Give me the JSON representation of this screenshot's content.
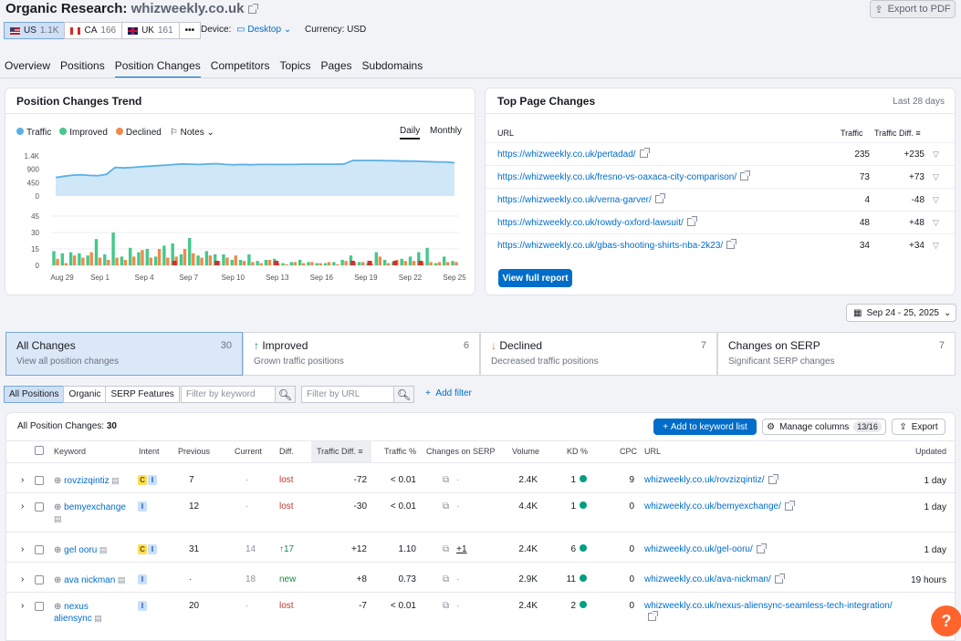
{
  "header": {
    "title_prefix": "Organic Research:",
    "domain": "whizweekly.co.uk",
    "export_pdf": "Export to PDF"
  },
  "databases": [
    {
      "code": "US",
      "count": "1.1K",
      "selected": true
    },
    {
      "code": "CA",
      "count": "166",
      "selected": false
    },
    {
      "code": "UK",
      "count": "161",
      "selected": false
    }
  ],
  "more_label": "•••",
  "device": {
    "label": "Device:",
    "value": "Desktop"
  },
  "currency": {
    "label": "Currency:",
    "value": "USD"
  },
  "nav_tabs": [
    "Overview",
    "Positions",
    "Position Changes",
    "Competitors",
    "Topics",
    "Pages",
    "Subdomains"
  ],
  "active_tab": "Position Changes",
  "trend": {
    "title": "Position Changes Trend",
    "legend": {
      "traffic": "Traffic",
      "improved": "Improved",
      "declined": "Declined",
      "notes": "Notes"
    },
    "period_daily": "Daily",
    "period_monthly": "Monthly",
    "traffic_ticks": [
      "1.4K",
      "900",
      "450",
      "0"
    ],
    "changes_ticks": [
      "45",
      "30",
      "15",
      "0"
    ],
    "x_labels": [
      "Aug 29",
      "Sep 1",
      "Sep 4",
      "Sep 7",
      "Sep 10",
      "Sep 13",
      "Sep 16",
      "Sep 19",
      "Sep 22",
      "Sep 25"
    ]
  },
  "chart_data": {
    "type": "line",
    "traffic": [
      650,
      690,
      730,
      740,
      720,
      710,
      760,
      1000,
      980,
      1000,
      1020,
      1040,
      1060,
      1080,
      1100,
      1120,
      1110,
      1100,
      1120,
      1130,
      1100,
      1090,
      1100,
      1090,
      1100,
      1100,
      1100,
      1100,
      1100,
      1110,
      1110,
      1110,
      1110,
      1110,
      1120,
      1240,
      1240,
      1240,
      1240,
      1230,
      1230,
      1220,
      1220,
      1210,
      1200,
      1190,
      1190,
      1160
    ],
    "improved": [
      13,
      11,
      12,
      11,
      9,
      24,
      10,
      30,
      8,
      16,
      12,
      15,
      8,
      18,
      20,
      10,
      25,
      9,
      13,
      10,
      10,
      5,
      5,
      10,
      4,
      5,
      6,
      2,
      3,
      5,
      3,
      2,
      2,
      3,
      5,
      9,
      3,
      2,
      12,
      5,
      3,
      6,
      8,
      12,
      16,
      2,
      8,
      4
    ],
    "declined": [
      6,
      2,
      9,
      7,
      12,
      7,
      5,
      7,
      5,
      8,
      14,
      7,
      15,
      7,
      8,
      15,
      11,
      7,
      9,
      4,
      7,
      9,
      4,
      3,
      2,
      5,
      2,
      1,
      3,
      2,
      3,
      2,
      3,
      1,
      4,
      3,
      3,
      2,
      8,
      2,
      5,
      4,
      4,
      3,
      3,
      3,
      3,
      3
    ],
    "notes_days": [
      14,
      19,
      26,
      35,
      37,
      40,
      43
    ]
  },
  "top_pages": {
    "title": "Top Page Changes",
    "period": "Last 28 days",
    "col_url": "URL",
    "col_traffic": "Traffic",
    "col_diff": "Traffic Diff.",
    "rows": [
      {
        "url": "https://whizweekly.co.uk/pertadad/",
        "traffic": "235",
        "diff": "+235"
      },
      {
        "url": "https://whizweekly.co.uk/fresno-vs-oaxaca-city-comparison/",
        "traffic": "73",
        "diff": "+73"
      },
      {
        "url": "https://whizweekly.co.uk/verna-garver/",
        "traffic": "4",
        "diff": "-48"
      },
      {
        "url": "https://whizweekly.co.uk/rowdy-oxford-lawsuit/",
        "traffic": "48",
        "diff": "+48"
      },
      {
        "url": "https://whizweekly.co.uk/gbas-shooting-shirts-nba-2k23/",
        "traffic": "34",
        "diff": "+34"
      }
    ],
    "view_full": "View full report"
  },
  "date_range": "Sep 24 - 25, 2025",
  "filter_tabs": [
    {
      "title": "All Changes",
      "count": "30",
      "sub": "View all position changes",
      "active": true,
      "icon": ""
    },
    {
      "title": "Improved",
      "count": "6",
      "sub": "Grown traffic positions",
      "active": false,
      "icon": "↑"
    },
    {
      "title": "Declined",
      "count": "7",
      "sub": "Decreased traffic positions",
      "active": false,
      "icon": "↓"
    },
    {
      "title": "Changes on SERP",
      "count": "7",
      "sub": "Significant SERP changes",
      "active": false,
      "icon": ""
    }
  ],
  "chips": [
    "All Positions",
    "Organic",
    "SERP Features"
  ],
  "filters": {
    "keyword_placeholder": "Filter by keyword",
    "url_placeholder": "Filter by URL",
    "add_filter": "Add filter"
  },
  "table": {
    "summary_label": "All Position Changes:",
    "summary_count": "30",
    "add_to_list": "Add to keyword list",
    "manage_columns": "Manage columns",
    "columns_count": "13/16",
    "export": "Export",
    "headers": [
      "Keyword",
      "Intent",
      "Previous",
      "Current",
      "Diff.",
      "Traffic Diff.",
      "Traffic %",
      "Changes on SERP",
      "Volume",
      "KD %",
      "CPC",
      "URL",
      "Updated"
    ],
    "rows": [
      {
        "keyword": "rovzizqintiz",
        "intents": [
          "C",
          "I"
        ],
        "previous": "7",
        "current": "·",
        "diff": "lost",
        "traffic_diff": "-72",
        "traffic_pct": "< 0.01",
        "serp_changes": "·",
        "volume": "2.4K",
        "kd": "1",
        "cpc": "9",
        "url": "whizweekly.co.uk/rovzizqintiz/",
        "updated": "1 day"
      },
      {
        "keyword": "bemyexchange",
        "intents": [
          "I"
        ],
        "previous": "12",
        "current": "·",
        "diff": "lost",
        "traffic_diff": "-30",
        "traffic_pct": "< 0.01",
        "serp_changes": "·",
        "volume": "4.4K",
        "kd": "1",
        "cpc": "0",
        "url": "whizweekly.co.uk/bemyexchange/",
        "updated": "1 day"
      },
      {
        "keyword": "gel ooru",
        "intents": [
          "C",
          "I"
        ],
        "previous": "31",
        "current": "14",
        "diff": "↑17",
        "traffic_diff": "+12",
        "traffic_pct": "1.10",
        "serp_changes": "+1",
        "volume": "2.4K",
        "kd": "6",
        "cpc": "0",
        "url": "whizweekly.co.uk/gel-ooru/",
        "updated": "1 day"
      },
      {
        "keyword": "ava nickman",
        "intents": [
          "I"
        ],
        "previous": "·",
        "current": "18",
        "diff": "new",
        "traffic_diff": "+8",
        "traffic_pct": "0.73",
        "serp_changes": "·",
        "volume": "2.9K",
        "kd": "11",
        "cpc": "0",
        "url": "whizweekly.co.uk/ava-nickman/",
        "updated": "19 hours"
      },
      {
        "keyword": "nexus aliensync",
        "intents": [
          "I"
        ],
        "previous": "20",
        "current": "·",
        "diff": "lost",
        "traffic_diff": "-7",
        "traffic_pct": "< 0.01",
        "serp_changes": "·",
        "volume": "2.4K",
        "kd": "2",
        "cpc": "0",
        "url": "whizweekly.co.uk/nexus-aliensync-seamless-tech-integration/",
        "updated": ""
      }
    ]
  },
  "help_label": "?",
  "colors": {
    "traffic": "#5ab0e6",
    "improved": "#43c98b",
    "declined": "#f08a4b",
    "accent": "#006dca",
    "positive": "#1a8a4a",
    "negative": "#c0392b"
  }
}
